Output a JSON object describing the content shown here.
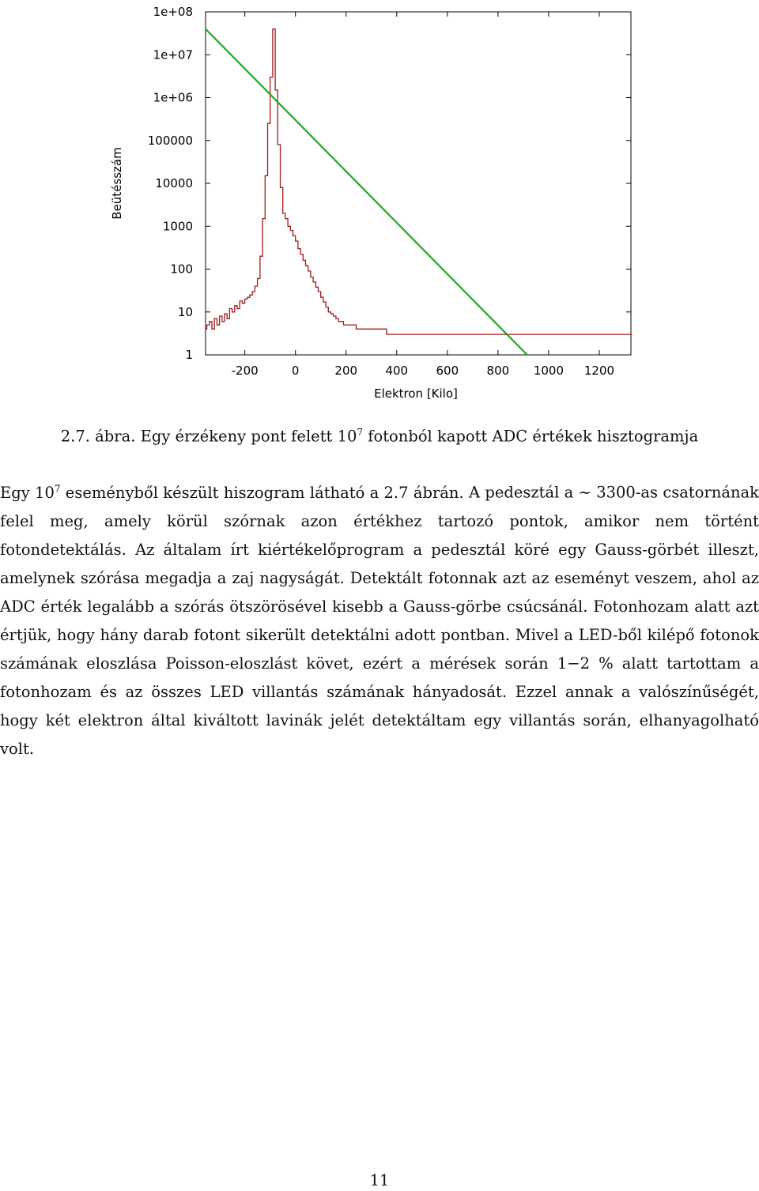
{
  "figure": {
    "chart_data": {
      "type": "line",
      "title": "",
      "xlabel": "Elektron [Kilo]",
      "ylabel": "Beütésszám",
      "x_ticks": [
        -200,
        0,
        200,
        400,
        600,
        800,
        1000,
        1200
      ],
      "x_tick_labels": [
        "-200",
        "0",
        "200",
        "400",
        "600",
        "800",
        "1000",
        "1200"
      ],
      "y_ticks": [
        1,
        10,
        100,
        1000,
        10000,
        100000,
        1000000,
        10000000,
        100000000
      ],
      "y_tick_labels": [
        "1",
        "10",
        "100",
        "1000",
        "10000",
        "100000",
        "1e+06",
        "1e+07",
        "1e+08"
      ],
      "xlim": [
        -355,
        1325
      ],
      "ylim": [
        1,
        100000000
      ],
      "y_scale": "log",
      "grid": false,
      "series": [
        {
          "kind": "histogram",
          "color": "#a01c1c",
          "x": [
            -355,
            -350,
            -340,
            -330,
            -320,
            -310,
            -300,
            -290,
            -280,
            -270,
            -260,
            -250,
            -240,
            -230,
            -220,
            -210,
            -200,
            -190,
            -180,
            -170,
            -160,
            -150,
            -140,
            -130,
            -120,
            -110,
            -100,
            -90,
            -80,
            -70,
            -60,
            -50,
            -40,
            -30,
            -20,
            -10,
            0,
            10,
            20,
            30,
            40,
            50,
            60,
            70,
            80,
            90,
            100,
            110,
            120,
            130,
            140,
            150,
            160,
            170,
            180,
            190,
            200,
            220,
            240,
            260,
            280,
            300,
            320,
            340,
            360,
            380,
            400,
            420,
            440,
            460,
            480,
            500,
            520,
            540,
            560,
            580,
            600,
            620,
            640,
            660,
            680,
            700,
            720,
            740,
            760,
            780,
            800,
            820,
            840,
            860,
            880,
            900,
            920,
            940,
            960,
            980,
            1000,
            1020,
            1040,
            1060,
            1080,
            1100,
            1120,
            1140,
            1160,
            1180,
            1200,
            1220,
            1240,
            1260,
            1280,
            1300,
            1320
          ],
          "y": [
            4,
            5,
            6,
            4,
            7,
            5,
            8,
            6,
            9,
            7,
            12,
            10,
            14,
            12,
            18,
            16,
            20,
            22,
            25,
            30,
            40,
            60,
            200,
            1500,
            15000,
            250000,
            3000000,
            40000000,
            1500000,
            80000,
            8000,
            2000,
            1500,
            1000,
            800,
            600,
            450,
            300,
            220,
            160,
            120,
            90,
            65,
            50,
            38,
            30,
            22,
            17,
            13,
            10,
            9,
            8,
            7,
            6,
            6,
            5,
            5,
            5,
            4,
            4,
            4,
            4,
            4,
            4,
            3,
            3,
            3,
            3,
            3,
            3,
            3,
            3,
            3,
            3,
            3,
            3,
            3,
            3,
            3,
            3,
            3,
            3,
            3,
            3,
            3,
            3,
            3,
            3,
            3,
            3,
            3,
            3,
            3,
            3,
            3,
            3,
            3,
            3,
            3,
            3,
            3,
            3,
            3,
            3,
            3,
            3,
            3,
            3,
            3,
            3,
            3,
            3,
            3
          ]
        },
        {
          "kind": "fit-line",
          "color": "#1fa81f",
          "x": [
            -355,
            915
          ],
          "y": [
            40000000,
            1
          ]
        }
      ]
    }
  },
  "caption": {
    "prefix": "2.7. ábra. Egy érzékeny pont felett 10",
    "sup": "7",
    "suffix": " fotonból kapott ADC értékek hisztogramja"
  },
  "body": {
    "s1_prefix": "Egy 10",
    "s1_sup": "7",
    "s1_rest": " eseményből készült hiszogram látható a 2.7 ábrán.",
    "s2": " A pedesztál a ∼ 3300-as csatornának felel meg, amely körül szórnak azon értékhez tartozó pontok, amikor nem történt fotondetektálás.",
    "s3": " Az általam írt kiértékelőprogram a pedesztál köré egy Gauss-görbét illeszt, amelynek szórása megadja a zaj nagyságát.",
    "s4": " Detektált fotonnak azt az eseményt veszem, ahol az ADC érték legalább a szórás ötszörösével kisebb a Gauss-görbe csúcsánál.",
    "s5": " Fotonhozam alatt azt értjük, hogy hány darab fotont sikerült detektálni adott pontban.",
    "s6": " Mivel a LED-ből kilépő fotonok számának eloszlása Poisson-eloszlást követ, ezért a mérések során 1−2 % alatt tartottam a fotonhozam és az összes LED villantás számának hányadosát.",
    "s7": " Ezzel annak a valószínűségét, hogy két elektron által kiváltott lavinák jelét detektáltam egy villantás során, elhanyagolható volt."
  },
  "page_number": "11"
}
